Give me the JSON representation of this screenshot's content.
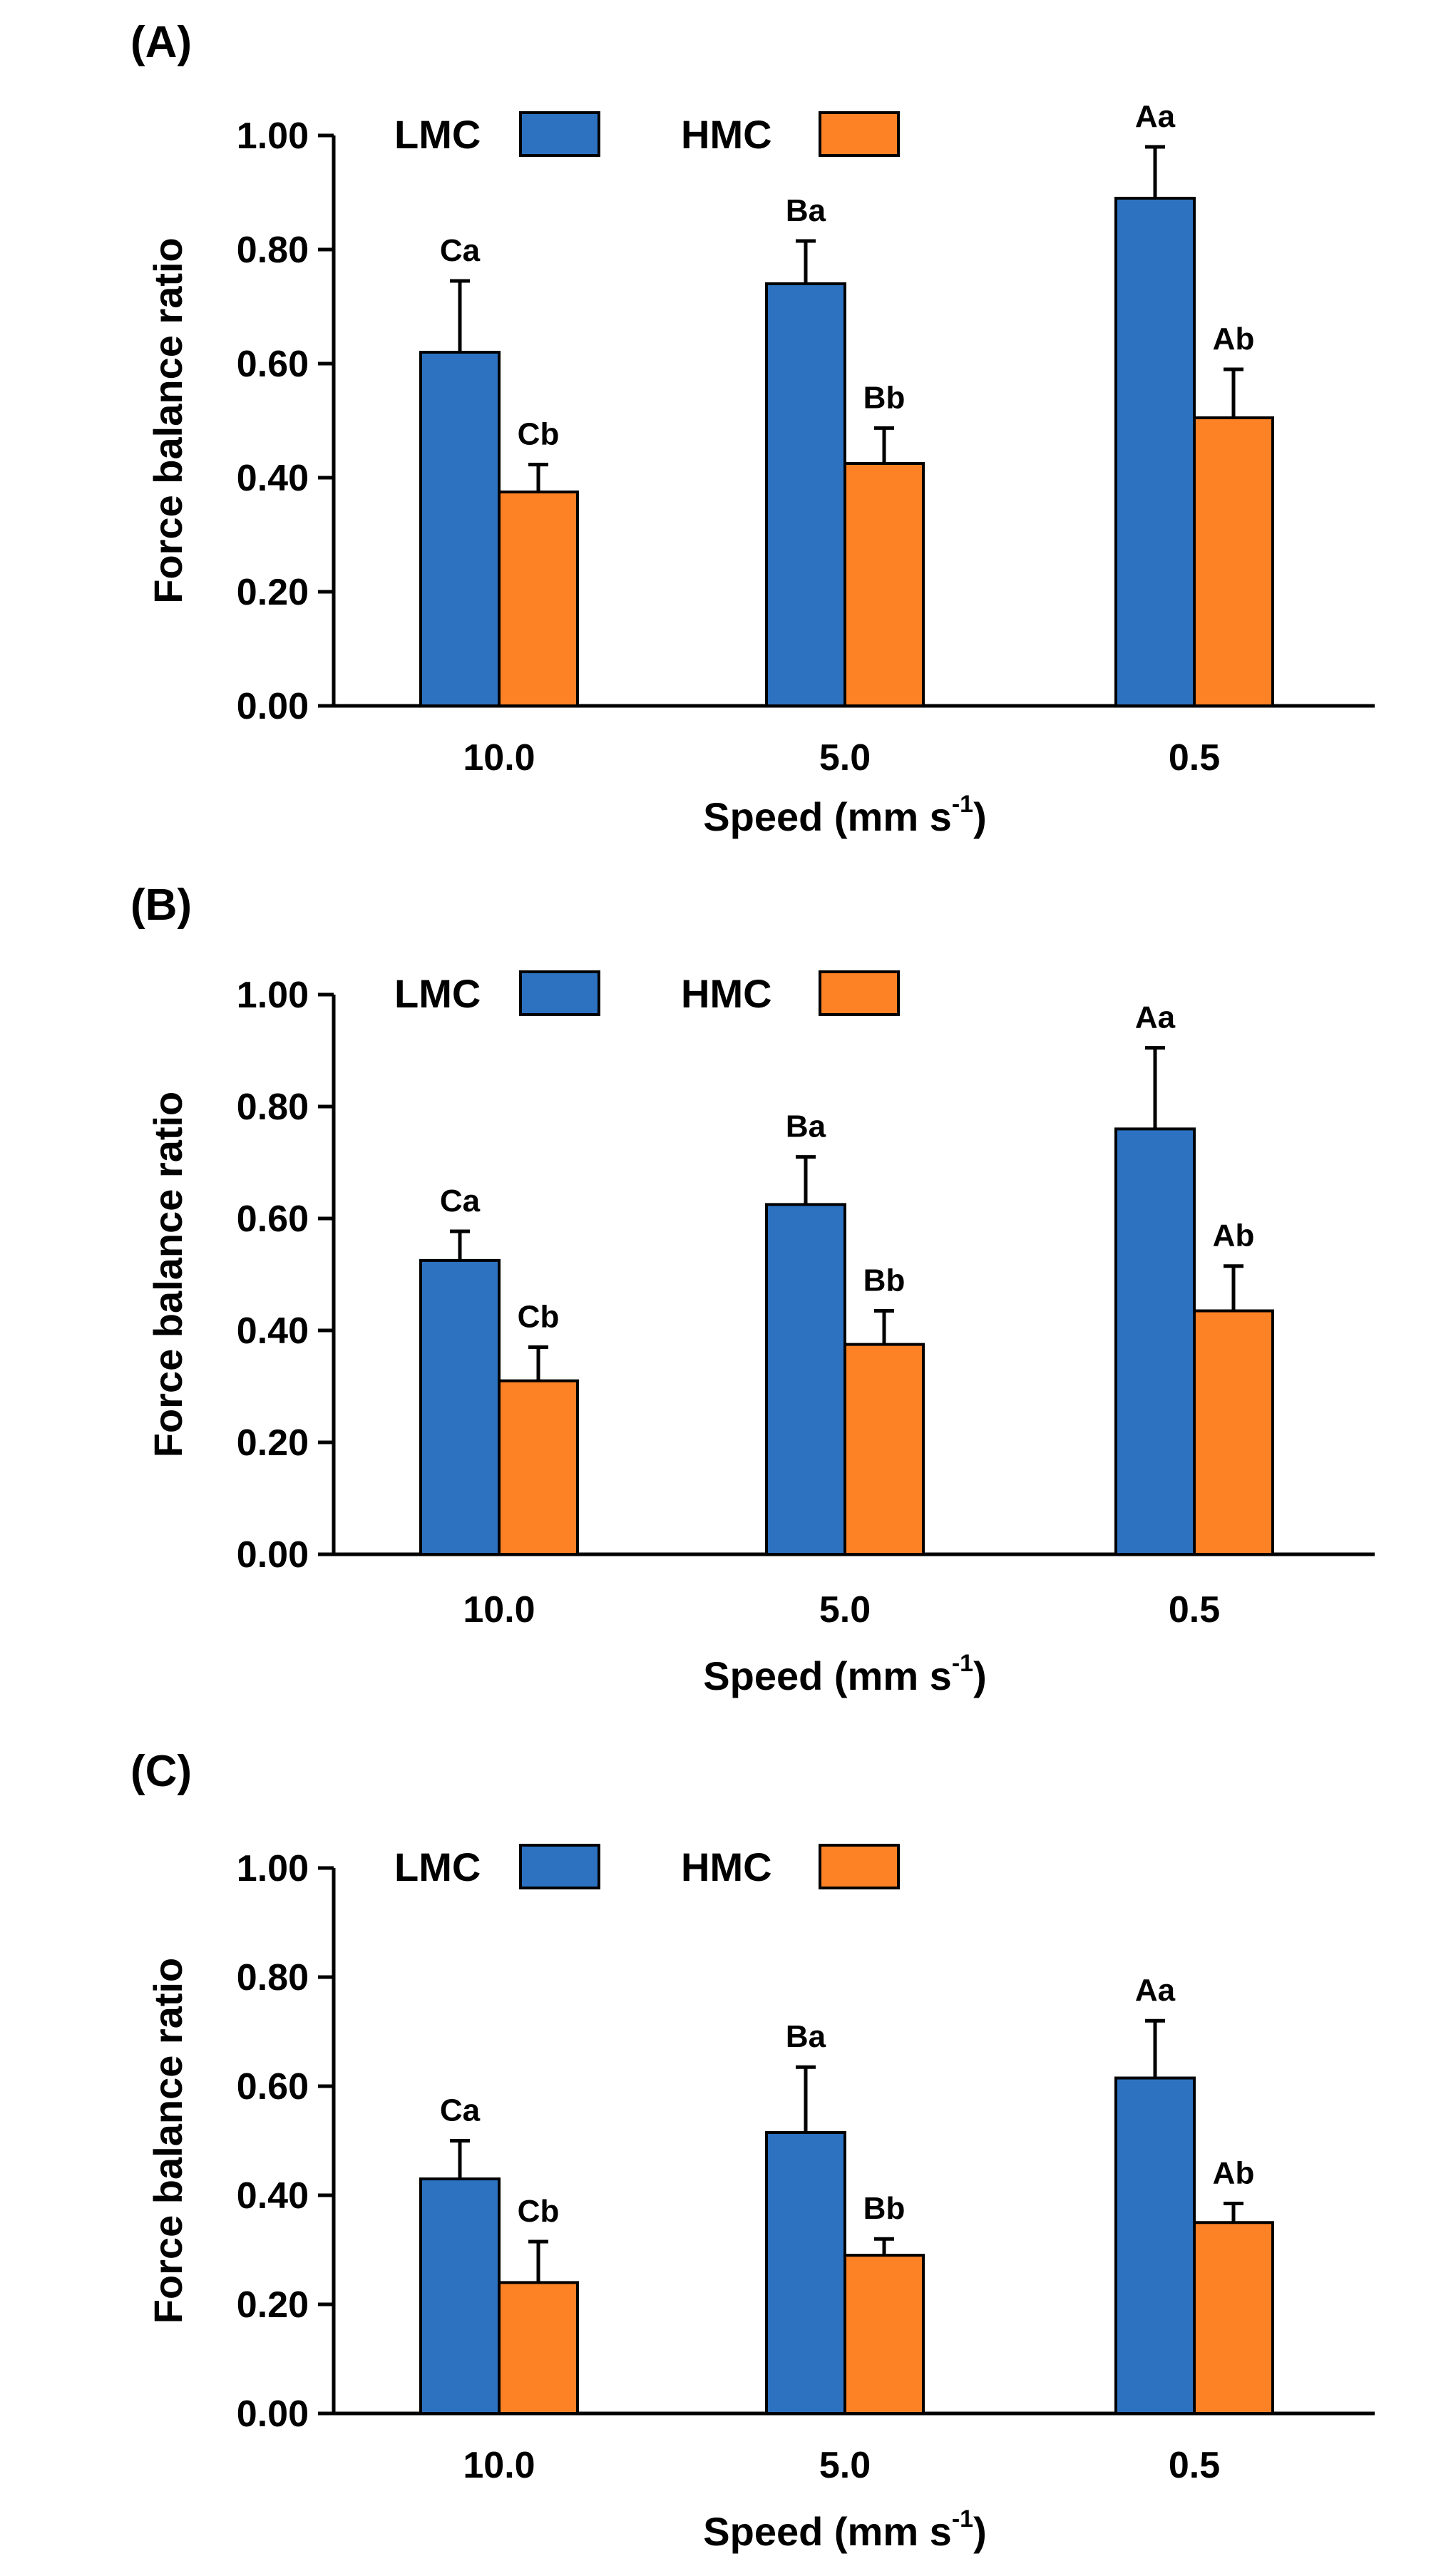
{
  "chart_data": [
    {
      "type": "bar",
      "panel_label": "(A)",
      "categories": [
        "10.0",
        "5.0",
        "0.5"
      ],
      "series": [
        {
          "name": "LMC",
          "color": "#2c72c1",
          "values": [
            0.62,
            0.74,
            0.89
          ],
          "errors": [
            0.125,
            0.075,
            0.09
          ],
          "labels": [
            "Ca",
            "Ba",
            "Aa"
          ]
        },
        {
          "name": "HMC",
          "color": "#fd8125",
          "values": [
            0.375,
            0.425,
            0.505
          ],
          "errors": [
            0.048,
            0.062,
            0.085
          ],
          "labels": [
            "Cb",
            "Bb",
            "Ab"
          ]
        }
      ],
      "xlabel": "Speed (mm s",
      "xlabel_sup": "-1",
      "xlabel_end": ")",
      "ylabel": "Force balance ratio",
      "ylim": [
        0,
        1.0
      ],
      "yticks": [
        "0.00",
        "0.20",
        "0.40",
        "0.60",
        "0.80",
        "1.00"
      ],
      "legend_position": "top-left"
    },
    {
      "type": "bar",
      "panel_label": "(B)",
      "categories": [
        "10.0",
        "5.0",
        "0.5"
      ],
      "series": [
        {
          "name": "LMC",
          "color": "#2c72c1",
          "values": [
            0.525,
            0.625,
            0.76
          ],
          "errors": [
            0.052,
            0.085,
            0.145
          ],
          "labels": [
            "Ca",
            "Ba",
            "Aa"
          ]
        },
        {
          "name": "HMC",
          "color": "#fd8125",
          "values": [
            0.31,
            0.375,
            0.435
          ],
          "errors": [
            0.06,
            0.06,
            0.08
          ],
          "labels": [
            "Cb",
            "Bb",
            "Ab"
          ]
        }
      ],
      "xlabel": "Speed (mm s",
      "xlabel_sup": "-1",
      "xlabel_end": ")",
      "ylabel": "Force balance ratio",
      "ylim": [
        0,
        1.0
      ],
      "yticks": [
        "0.00",
        "0.20",
        "0.40",
        "0.60",
        "0.80",
        "1.00"
      ],
      "legend_position": "top-left"
    },
    {
      "type": "bar",
      "panel_label": "(C)",
      "categories": [
        "10.0",
        "5.0",
        "0.5"
      ],
      "series": [
        {
          "name": "LMC",
          "color": "#2c72c1",
          "values": [
            0.43,
            0.515,
            0.615
          ],
          "errors": [
            0.07,
            0.12,
            0.105
          ],
          "labels": [
            "Ca",
            "Ba",
            "Aa"
          ]
        },
        {
          "name": "HMC",
          "color": "#fd8125",
          "values": [
            0.24,
            0.29,
            0.35
          ],
          "errors": [
            0.075,
            0.03,
            0.035
          ],
          "labels": [
            "Cb",
            "Bb",
            "Ab"
          ]
        }
      ],
      "xlabel": "Speed (mm s",
      "xlabel_sup": "-1",
      "xlabel_end": ")",
      "ylabel": "Force balance ratio",
      "ylim": [
        0,
        1.0
      ],
      "yticks": [
        "0.00",
        "0.20",
        "0.40",
        "0.60",
        "0.80",
        "1.00"
      ],
      "legend_position": "top-left"
    }
  ]
}
